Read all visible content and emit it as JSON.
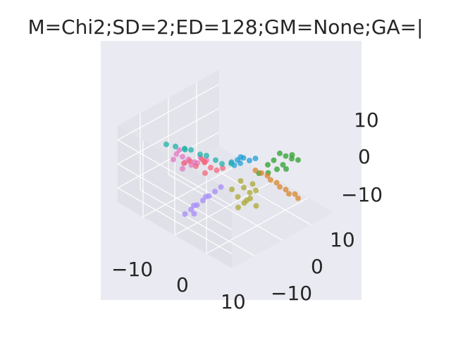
{
  "chart_data": {
    "type": "scatter",
    "projection": "3d",
    "title": "M=Chi2;SD=2;ED=128;GM=None;GA=|",
    "xlabel": "",
    "ylabel": "",
    "zlabel": "",
    "x_ticks": [
      "−10",
      "0",
      "10"
    ],
    "y_ticks": [
      "−10",
      "0",
      "10"
    ],
    "z_ticks": [
      "−10",
      "0",
      "10"
    ],
    "xlim": [
      -18,
      18
    ],
    "ylim": [
      -18,
      18
    ],
    "zlim": [
      -16,
      16
    ],
    "grid": true,
    "legend": "none",
    "background": "#eaeaf2",
    "series": [
      {
        "color": "#e377c2",
        "values": [
          [
            -3,
            -14,
            13
          ],
          [
            -2,
            -13,
            12
          ],
          [
            -1,
            -12,
            11
          ],
          [
            -4,
            -14,
            10
          ],
          [
            -2,
            -12,
            9
          ],
          [
            0,
            -11,
            10
          ],
          [
            -3,
            -13,
            14
          ],
          [
            1,
            -10,
            12
          ],
          [
            -1,
            -11,
            8
          ],
          [
            2,
            -9,
            11
          ],
          [
            -2,
            -13,
            7
          ],
          [
            0,
            -10,
            9
          ]
        ]
      },
      {
        "color": "#2ca02c",
        "values": [
          [
            10,
            8,
            9
          ],
          [
            11,
            9,
            8
          ],
          [
            9,
            7,
            6
          ],
          [
            12,
            10,
            7
          ],
          [
            8,
            6,
            4
          ],
          [
            11,
            8,
            5
          ],
          [
            13,
            9,
            10
          ],
          [
            10,
            7,
            3
          ],
          [
            9,
            5,
            2
          ],
          [
            12,
            8,
            4
          ],
          [
            7,
            4,
            1
          ],
          [
            14,
            10,
            8
          ]
        ]
      },
      {
        "color": "#1f9fd6",
        "values": [
          [
            2,
            2,
            4
          ],
          [
            3,
            3,
            5
          ],
          [
            1,
            1,
            3
          ],
          [
            4,
            4,
            4
          ],
          [
            2,
            3,
            2
          ],
          [
            3,
            2,
            6
          ],
          [
            5,
            5,
            5
          ],
          [
            1,
            2,
            1
          ]
        ]
      },
      {
        "color": "#f0677a",
        "values": [
          [
            -4,
            -6,
            2
          ],
          [
            -3,
            -4,
            3
          ],
          [
            -2,
            -3,
            1
          ],
          [
            -5,
            -7,
            4
          ],
          [
            -1,
            -2,
            0
          ],
          [
            -6,
            -8,
            3
          ],
          [
            -3,
            -5,
            5
          ],
          [
            0,
            -1,
            1
          ],
          [
            -4,
            -3,
            2
          ],
          [
            -2,
            -5,
            0
          ]
        ]
      },
      {
        "color": "#20b2aa",
        "values": [
          [
            -14,
            -2,
            0
          ],
          [
            -12,
            -1,
            0
          ],
          [
            -10,
            -1,
            1
          ],
          [
            -8,
            0,
            0
          ],
          [
            -6,
            0,
            1
          ],
          [
            -4,
            1,
            0
          ],
          [
            -2,
            1,
            0
          ],
          [
            0,
            2,
            1
          ],
          [
            -16,
            -3,
            0
          ],
          [
            -11,
            -2,
            1
          ]
        ]
      },
      {
        "color": "#a78bfa",
        "values": [
          [
            -2,
            -10,
            -12
          ],
          [
            -1,
            -9,
            -10
          ],
          [
            0,
            -8,
            -8
          ],
          [
            -3,
            -11,
            -14
          ],
          [
            1,
            -7,
            -6
          ],
          [
            2,
            -6,
            -4
          ],
          [
            -2,
            -9,
            -11
          ],
          [
            0,
            -7,
            -7
          ],
          [
            3,
            -5,
            -2
          ],
          [
            -1,
            -10,
            -13
          ]
        ]
      },
      {
        "color": "#aaa832",
        "values": [
          [
            4,
            2,
            -6
          ],
          [
            5,
            3,
            -8
          ],
          [
            3,
            1,
            -10
          ],
          [
            6,
            4,
            -7
          ],
          [
            4,
            3,
            -12
          ],
          [
            5,
            1,
            -11
          ],
          [
            2,
            0,
            -7
          ],
          [
            6,
            2,
            -9
          ],
          [
            7,
            3,
            -12
          ],
          [
            3,
            2,
            -4
          ],
          [
            5,
            4,
            -5
          ],
          [
            4,
            0,
            -13
          ]
        ]
      },
      {
        "color": "#d9862b",
        "values": [
          [
            6,
            6,
            -1
          ],
          [
            8,
            7,
            -3
          ],
          [
            10,
            8,
            -5
          ],
          [
            12,
            9,
            -7
          ],
          [
            14,
            10,
            -8
          ],
          [
            7,
            7,
            -2
          ],
          [
            9,
            8,
            -4
          ],
          [
            11,
            9,
            -6
          ],
          [
            13,
            10,
            -7
          ],
          [
            5,
            5,
            0
          ]
        ]
      }
    ]
  }
}
